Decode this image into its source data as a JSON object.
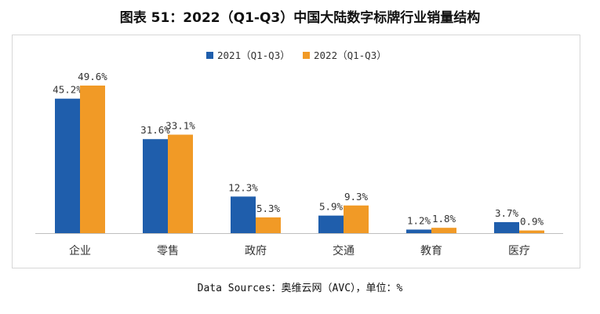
{
  "title": "图表 51：2022（Q1-Q3）中国大陆数字标牌行业销量结构",
  "source": "Data Sources：奥维云网（AVC），单位：%",
  "colors": {
    "series2021": "#1f5eac",
    "series2022": "#f19a26",
    "axis": "#bfbfbf"
  },
  "chart_data": {
    "type": "bar",
    "title": "2022（Q1-Q3）中国大陆数字标牌行业销量结构",
    "categories": [
      "企业",
      "零售",
      "政府",
      "交通",
      "教育",
      "医疗"
    ],
    "series": [
      {
        "name": "2021（Q1-Q3）",
        "values": [
          45.2,
          31.6,
          12.3,
          5.9,
          1.2,
          3.7
        ],
        "labels": [
          "45.2%",
          "31.6%",
          "12.3%",
          "5.9%",
          "1.2%",
          "3.7%"
        ]
      },
      {
        "name": "2022（Q1-Q3）",
        "values": [
          49.6,
          33.1,
          5.3,
          9.3,
          1.8,
          0.9
        ],
        "labels": [
          "49.6%",
          "33.1%",
          "5.3%",
          "9.3%",
          "1.8%",
          "0.9%"
        ]
      }
    ],
    "ylim": [
      0,
      50
    ],
    "grid": false,
    "legend": "top-center",
    "xlabel": "",
    "ylabel": ""
  }
}
